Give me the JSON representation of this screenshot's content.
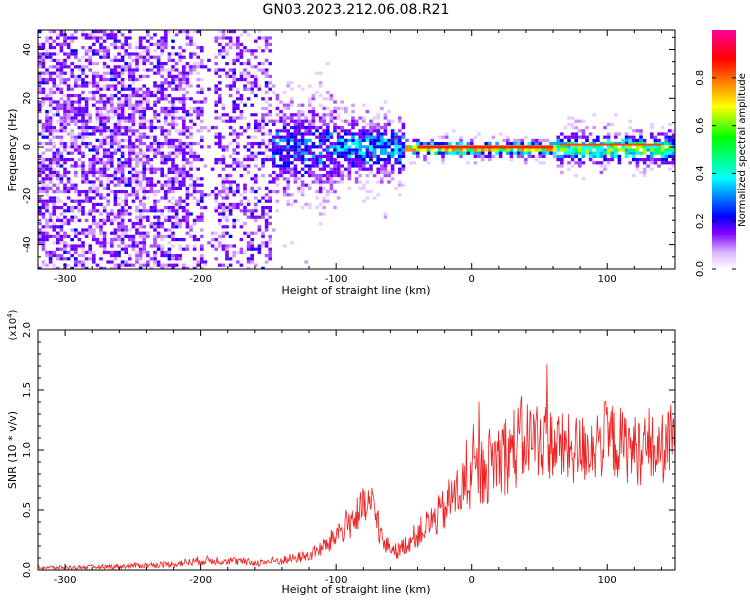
{
  "title": "GN03.2023.212.06.08.R21",
  "chart_data": [
    {
      "type": "heatmap",
      "xlabel": "Height of straight line (km)",
      "ylabel": "Frequency (Hz)",
      "xlim": [
        -320,
        150
      ],
      "ylim": [
        -50,
        48
      ],
      "xticks": [
        -300,
        -200,
        -100,
        0,
        100
      ],
      "yticks": [
        -40,
        -20,
        0,
        20,
        40
      ],
      "colorbar": {
        "label": "Normalized spectral amplitude",
        "range": [
          0,
          1
        ],
        "ticks": [
          "0.0",
          "0.2",
          "0.4",
          "0.6",
          "0.8"
        ],
        "colors": [
          "#ffffff",
          "#d9b3ff",
          "#8000ff",
          "#0000ff",
          "#00ffff",
          "#00ff00",
          "#ffff00",
          "#ff8000",
          "#ff0000",
          "#ff00a0"
        ]
      }
    },
    {
      "type": "line",
      "xlabel": "Height of straight line (km)",
      "ylabel": "SNR (10 * v/v)",
      "multiplier": "(x10",
      "multiplier_exp": "4",
      "multiplier_close": ")",
      "xlim": [
        -320,
        150
      ],
      "ylim": [
        0,
        2.0
      ],
      "xticks": [
        -300,
        -200,
        -100,
        0,
        100
      ],
      "yticks": [
        "0.0",
        "0.5",
        "1.0",
        "1.5",
        "2.0"
      ],
      "series": [
        {
          "color": "#ee2222",
          "x": [
            -320,
            -300,
            -260,
            -220,
            -200,
            -180,
            -160,
            -140,
            -120,
            -105,
            -100,
            -95,
            -90,
            -85,
            -80,
            -75,
            -70,
            -65,
            -60,
            -55,
            -50,
            -45,
            -40,
            -35,
            -30,
            -25,
            -20,
            -15,
            -10,
            -5,
            0,
            10,
            20,
            30,
            40,
            50,
            60,
            70,
            80,
            90,
            100,
            110,
            120,
            130,
            140,
            150
          ],
          "y": [
            0.02,
            0.02,
            0.03,
            0.05,
            0.08,
            0.08,
            0.06,
            0.08,
            0.12,
            0.22,
            0.3,
            0.35,
            0.4,
            0.45,
            0.5,
            0.55,
            0.45,
            0.2,
            0.2,
            0.15,
            0.2,
            0.25,
            0.3,
            0.35,
            0.4,
            0.45,
            0.5,
            0.6,
            0.65,
            0.7,
            0.75,
            0.85,
            0.95,
            1.0,
            1.1,
            1.1,
            1.05,
            1.0,
            1.0,
            1.05,
            1.1,
            1.05,
            1.0,
            1.0,
            1.0,
            1.1
          ]
        }
      ]
    }
  ]
}
